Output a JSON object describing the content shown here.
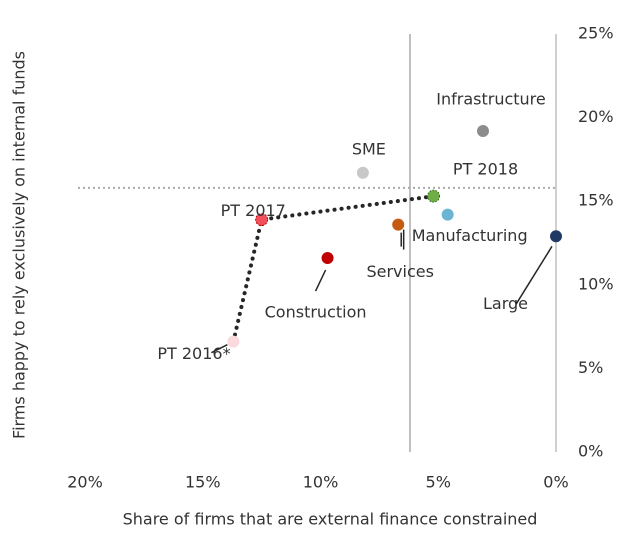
{
  "chart_data": {
    "type": "scatter",
    "x_label": "Share of firms that are external finance constrained",
    "y_label": "Firms happy to rely exclusively on internal funds",
    "xlim": [
      20,
      0
    ],
    "ylim": [
      0,
      25
    ],
    "xticks": [
      {
        "value": 20,
        "label": "20%"
      },
      {
        "value": 15,
        "label": "15%"
      },
      {
        "value": 10,
        "label": "10%"
      },
      {
        "value": 5,
        "label": "5%"
      },
      {
        "value": 0,
        "label": "0%"
      }
    ],
    "yticks": [
      {
        "value": 0,
        "label": "0%"
      },
      {
        "value": 5,
        "label": "5%"
      },
      {
        "value": 10,
        "label": "10%"
      },
      {
        "value": 15,
        "label": "15%"
      },
      {
        "value": 20,
        "label": "20%"
      },
      {
        "value": 25,
        "label": "25%"
      }
    ],
    "reference_lines": {
      "x": 6.2,
      "y": 15.8
    },
    "series": [
      {
        "labels": [
          "PT 2016*",
          "PT 2017",
          "PT 2018"
        ],
        "colors": [
          "#fadadd",
          "#f0505a",
          "#70ad47"
        ],
        "line": "dotted",
        "x": [
          13.7,
          12.5,
          5.2
        ],
        "values": [
          6.6,
          13.9,
          15.3
        ]
      },
      {
        "labels": [
          "Infrastructure",
          "SME",
          "Manufacturing",
          "Large",
          "Services",
          "Construction"
        ],
        "colors": [
          "#8c8c8c",
          "#c8c8c8",
          "#6cb4d4",
          "#1f3864",
          "#c55a11",
          "#c00000"
        ],
        "x": [
          3.1,
          8.2,
          4.6,
          0,
          6.7,
          9.7
        ],
        "values": [
          19.2,
          16.7,
          14.2,
          12.9,
          13.6,
          11.6
        ]
      }
    ]
  }
}
